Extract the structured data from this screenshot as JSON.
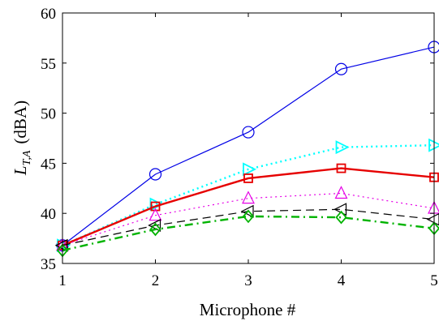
{
  "chart_data": {
    "type": "line",
    "title": "",
    "xlabel": "Microphone #",
    "ylabel": {
      "base": "L",
      "subscript": "T,A",
      "unit": "(dBA)"
    },
    "x": [
      1,
      2,
      3,
      4,
      5
    ],
    "xlim": [
      1,
      5
    ],
    "ylim": [
      35,
      60
    ],
    "xticks": [
      "1",
      "2",
      "3",
      "4",
      "5"
    ],
    "yticks": [
      "35",
      "40",
      "45",
      "50",
      "55",
      "60"
    ],
    "grid": false,
    "series": [
      {
        "color": "#0000e6",
        "linestyle": "solid",
        "linewidth": 1,
        "marker": "circle",
        "values": [
          36.8,
          43.9,
          48.1,
          54.4,
          56.6
        ]
      },
      {
        "color": "#00ffff",
        "linestyle": "dotted",
        "linewidth": 2,
        "marker": "triangle-right",
        "values": [
          36.8,
          40.9,
          44.4,
          46.6,
          46.8
        ]
      },
      {
        "color": "#e60000",
        "linestyle": "solid",
        "linewidth": 2,
        "marker": "square",
        "values": [
          36.8,
          40.7,
          43.5,
          44.5,
          43.6
        ]
      },
      {
        "color": "#e600e6",
        "linestyle": "dotted",
        "linewidth": 1,
        "marker": "triangle-up",
        "values": [
          36.8,
          39.8,
          41.5,
          42.0,
          40.5
        ]
      },
      {
        "color": "#000000",
        "linestyle": "dashed",
        "linewidth": 1,
        "marker": "triangle-left",
        "values": [
          36.8,
          38.8,
          40.2,
          40.4,
          39.4
        ]
      },
      {
        "color": "#00b300",
        "linestyle": "dashdot",
        "linewidth": 2,
        "marker": "diamond",
        "values": [
          36.3,
          38.4,
          39.7,
          39.6,
          38.5
        ]
      }
    ]
  }
}
